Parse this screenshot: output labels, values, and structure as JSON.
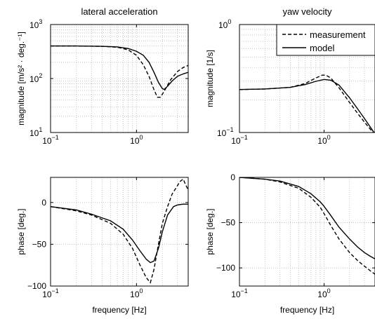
{
  "chart_data": [
    {
      "id": "lat_mag",
      "type": "line",
      "title": "lateral acceleration",
      "xlabel": "",
      "ylabel": "magnitude [m/s² · deg.⁻¹]",
      "xscale": "log",
      "yscale": "log",
      "xlim": [
        0.1,
        4
      ],
      "ylim": [
        10,
        1000
      ],
      "xticks": [
        {
          "v": 0.1,
          "base": "10",
          "exp": "−1"
        },
        {
          "v": 1,
          "base": "10",
          "exp": "0"
        }
      ],
      "yticks": [
        {
          "v": 10,
          "base": "10",
          "exp": "1"
        },
        {
          "v": 100,
          "base": "10",
          "exp": "2"
        },
        {
          "v": 1000,
          "base": "10",
          "exp": "3"
        }
      ],
      "grid": true,
      "series": [
        {
          "style": "dashed",
          "x": [
            0.1,
            0.2,
            0.4,
            0.6,
            0.8,
            1.0,
            1.2,
            1.4,
            1.6,
            1.75,
            1.9,
            2.1,
            2.5,
            3.0,
            3.5,
            4.0
          ],
          "y": [
            400,
            400,
            395,
            380,
            340,
            270,
            180,
            110,
            62,
            45,
            45,
            58,
            95,
            135,
            160,
            175
          ]
        },
        {
          "style": "solid",
          "x": [
            0.1,
            0.2,
            0.4,
            0.6,
            0.8,
            1.0,
            1.2,
            1.4,
            1.6,
            1.8,
            2.0,
            2.1,
            2.3,
            2.6,
            3.0,
            3.5,
            4.0
          ],
          "y": [
            400,
            400,
            395,
            385,
            360,
            320,
            270,
            200,
            130,
            85,
            65,
            63,
            72,
            90,
            110,
            122,
            130
          ]
        }
      ]
    },
    {
      "id": "yaw_mag",
      "type": "line",
      "title": "yaw velocity",
      "xlabel": "",
      "ylabel": "magnitude [1/s]",
      "xscale": "log",
      "yscale": "log",
      "xlim": [
        0.1,
        4
      ],
      "ylim": [
        0.1,
        1
      ],
      "xticks": [
        {
          "v": 0.1,
          "base": "10",
          "exp": "−1"
        },
        {
          "v": 1,
          "base": "10",
          "exp": "0"
        }
      ],
      "yticks": [
        {
          "v": 0.1,
          "base": "10",
          "exp": "−1"
        },
        {
          "v": 1,
          "base": "10",
          "exp": "0"
        }
      ],
      "grid": true,
      "legend": {
        "position": "top-right",
        "entries": [
          {
            "label": "measurement",
            "style": "dashed"
          },
          {
            "label": "model",
            "style": "solid"
          }
        ]
      },
      "series": [
        {
          "name": "measurement",
          "style": "dashed",
          "x": [
            0.1,
            0.2,
            0.4,
            0.6,
            0.8,
            0.95,
            1.05,
            1.2,
            1.5,
            2.0,
            2.5,
            3.0,
            3.5,
            4.0
          ],
          "y": [
            0.25,
            0.253,
            0.262,
            0.285,
            0.32,
            0.34,
            0.34,
            0.32,
            0.26,
            0.19,
            0.15,
            0.125,
            0.108,
            0.095
          ]
        },
        {
          "name": "model",
          "style": "solid",
          "x": [
            0.1,
            0.2,
            0.4,
            0.6,
            0.8,
            1.0,
            1.2,
            1.5,
            2.0,
            2.5,
            3.0,
            3.5,
            4.0
          ],
          "y": [
            0.25,
            0.253,
            0.262,
            0.278,
            0.298,
            0.31,
            0.305,
            0.275,
            0.21,
            0.165,
            0.135,
            0.113,
            0.097
          ]
        }
      ]
    },
    {
      "id": "lat_phase",
      "type": "line",
      "title": "",
      "xlabel": "frequency [Hz]",
      "ylabel": "phase [deg.]",
      "xscale": "log",
      "yscale": "linear",
      "xlim": [
        0.1,
        4
      ],
      "ylim": [
        -100,
        30
      ],
      "xticks": [
        {
          "v": 0.1,
          "base": "10",
          "exp": "−1"
        },
        {
          "v": 1,
          "base": "10",
          "exp": "0"
        }
      ],
      "yticks": [
        {
          "v": 0,
          "label": "0"
        },
        {
          "v": -50,
          "label": "−50"
        },
        {
          "v": -100,
          "label": "−100"
        }
      ],
      "grid": true,
      "series": [
        {
          "style": "dashed",
          "x": [
            0.1,
            0.2,
            0.3,
            0.5,
            0.7,
            0.9,
            1.1,
            1.3,
            1.45,
            1.6,
            1.8,
            2.0,
            2.3,
            2.6,
            3.0,
            3.2,
            3.5,
            3.7,
            4.0
          ],
          "y": [
            -5,
            -10,
            -15,
            -25,
            -38,
            -55,
            -75,
            -90,
            -96,
            -80,
            -50,
            -25,
            -5,
            10,
            20,
            25,
            28,
            22,
            15
          ]
        },
        {
          "style": "solid",
          "x": [
            0.1,
            0.2,
            0.3,
            0.5,
            0.7,
            0.9,
            1.1,
            1.3,
            1.45,
            1.6,
            1.8,
            2.0,
            2.3,
            2.7,
            3.0,
            3.5,
            4.0
          ],
          "y": [
            -5,
            -9,
            -14,
            -22,
            -32,
            -45,
            -58,
            -68,
            -72,
            -70,
            -55,
            -35,
            -15,
            -5,
            -3,
            -2,
            -2
          ]
        }
      ]
    },
    {
      "id": "yaw_phase",
      "type": "line",
      "title": "",
      "xlabel": "frequency [Hz]",
      "ylabel": "phase [deg.]",
      "xscale": "log",
      "yscale": "linear",
      "xlim": [
        0.1,
        4
      ],
      "ylim": [
        -120,
        0
      ],
      "xticks": [
        {
          "v": 0.1,
          "base": "10",
          "exp": "−1"
        },
        {
          "v": 1,
          "base": "10",
          "exp": "0"
        }
      ],
      "yticks": [
        {
          "v": 0,
          "label": "0"
        },
        {
          "v": -50,
          "label": "−50"
        },
        {
          "v": -100,
          "label": "−100"
        }
      ],
      "grid": true,
      "series": [
        {
          "style": "dashed",
          "x": [
            0.1,
            0.2,
            0.3,
            0.5,
            0.7,
            0.9,
            1.0,
            1.2,
            1.5,
            2.0,
            2.5,
            3.0,
            3.5,
            4.0
          ],
          "y": [
            0,
            -2,
            -5,
            -12,
            -22,
            -33,
            -40,
            -53,
            -68,
            -83,
            -92,
            -98,
            -103,
            -107
          ]
        },
        {
          "style": "solid",
          "x": [
            0.1,
            0.2,
            0.3,
            0.5,
            0.7,
            0.9,
            1.0,
            1.2,
            1.5,
            2.0,
            2.5,
            3.0,
            3.5,
            4.0
          ],
          "y": [
            0,
            -2,
            -4,
            -10,
            -18,
            -27,
            -32,
            -42,
            -55,
            -68,
            -77,
            -83,
            -87,
            -90
          ]
        }
      ]
    }
  ]
}
